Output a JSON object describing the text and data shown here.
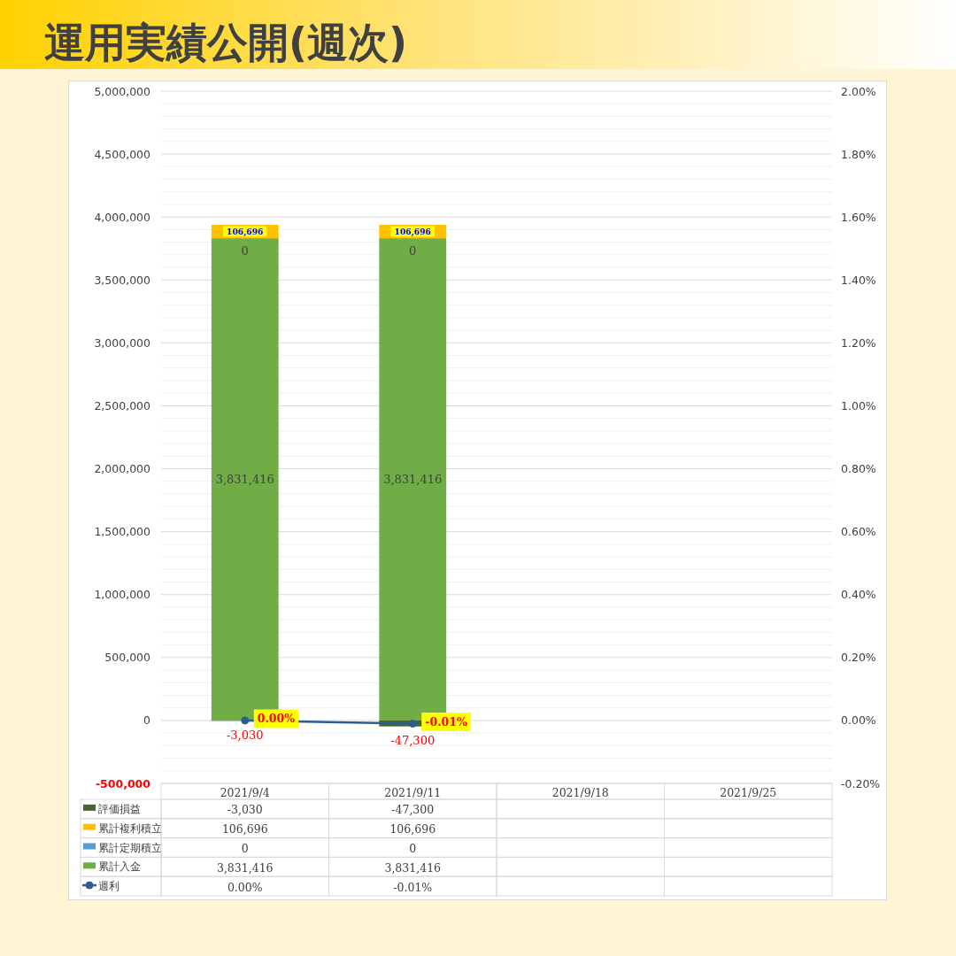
{
  "chart_data": {
    "type": "bar",
    "title": "運用実績公開(週次)",
    "categories": [
      "2021/9/4",
      "2021/9/11",
      "2021/9/18",
      "2021/9/25"
    ],
    "stacked": true,
    "series": [
      {
        "name": "累計入金",
        "color": "#70ad47",
        "values": [
          3831416,
          3831416,
          null,
          null
        ],
        "value_labels": [
          "3,831,416",
          "3,831,416",
          null,
          null
        ]
      },
      {
        "name": "累計定期積立",
        "color": "#5b9bd5",
        "values": [
          0,
          0,
          null,
          null
        ],
        "value_labels": [
          "0",
          "0",
          null,
          null
        ]
      },
      {
        "name": "累計複利積立",
        "color": "#ffc000",
        "values": [
          106696,
          106696,
          null,
          null
        ],
        "value_labels": [
          "106,696",
          "106,696",
          null,
          null
        ]
      },
      {
        "name": "評価損益",
        "color": "#46662c",
        "values": [
          -3030,
          -47300,
          null,
          null
        ],
        "value_labels": [
          "-3,030",
          "-47,300",
          null,
          null
        ]
      },
      {
        "name": "週利",
        "type": "line",
        "axis": "y2",
        "color": "#2b5f92",
        "values": [
          0.0,
          -0.01,
          null,
          null
        ],
        "value_labels": [
          "0.00%",
          "-0.01%",
          null,
          null
        ]
      }
    ],
    "ylim": [
      -500000,
      5000000
    ],
    "yticks": [
      {
        "value": -500000,
        "label": "-500,000"
      },
      {
        "value": -400000,
        "label": null
      },
      {
        "value": -300000,
        "label": null
      },
      {
        "value": -200000,
        "label": null
      },
      {
        "value": -100000,
        "label": null
      },
      0,
      {
        "value": 100000,
        "label": null
      },
      {
        "value": 200000,
        "label": null
      },
      {
        "value": 300000,
        "label": null
      },
      {
        "value": 400000,
        "label": null
      },
      {
        "value": 500000,
        "label": "500,000"
      },
      {
        "value": 600000,
        "label": null
      },
      {
        "value": 700000,
        "label": null
      },
      {
        "value": 800000,
        "label": null
      },
      {
        "value": 900000,
        "label": null
      },
      {
        "value": 1000000,
        "label": "1,000,000"
      },
      {
        "value": 1100000,
        "label": null
      },
      {
        "value": 1200000,
        "label": null
      },
      {
        "value": 1300000,
        "label": null
      },
      {
        "value": 1400000,
        "label": null
      },
      {
        "value": 1500000,
        "label": "1,500,000"
      },
      {
        "value": 1600000,
        "label": null
      },
      {
        "value": 1700000,
        "label": null
      },
      {
        "value": 1800000,
        "label": null
      },
      {
        "value": 1900000,
        "label": null
      },
      {
        "value": 2000000,
        "label": "2,000,000"
      },
      {
        "value": 2100000,
        "label": null
      },
      {
        "value": 2200000,
        "label": null
      },
      {
        "value": 2300000,
        "label": null
      },
      {
        "value": 2400000,
        "label": null
      },
      {
        "value": 2500000,
        "label": "2,500,000"
      },
      {
        "value": 2600000,
        "label": null
      },
      {
        "value": 2700000,
        "label": null
      },
      {
        "value": 2800000,
        "label": null
      },
      {
        "value": 2900000,
        "label": null
      },
      {
        "value": 3000000,
        "label": "3,000,000"
      },
      {
        "value": 3100000,
        "label": null
      },
      {
        "value": 3200000,
        "label": null
      },
      {
        "value": 3300000,
        "label": null
      },
      {
        "value": 3400000,
        "label": null
      },
      {
        "value": 3500000,
        "label": "3,500,000"
      },
      {
        "value": 3600000,
        "label": null
      },
      {
        "value": 3700000,
        "label": null
      },
      {
        "value": 3800000,
        "label": null
      },
      {
        "value": 3900000,
        "label": null
      },
      {
        "value": 4000000,
        "label": "4,000,000"
      },
      {
        "value": 4100000,
        "label": null
      },
      {
        "value": 4200000,
        "label": null
      },
      {
        "value": 4300000,
        "label": null
      },
      {
        "value": 4400000,
        "label": null
      },
      {
        "value": 4500000,
        "label": "4,500,000"
      },
      {
        "value": 4600000,
        "label": null
      },
      {
        "value": 4700000,
        "label": null
      },
      {
        "value": 4800000,
        "label": null
      },
      {
        "value": 4900000,
        "label": null
      },
      {
        "value": 5000000,
        "label": "5,000,000"
      }
    ],
    "y2lim": [
      -0.2,
      2.0
    ],
    "y2ticks": [
      {
        "value": -0.2,
        "label": "-0.20%"
      },
      {
        "value": 0,
        "label": "0.00%"
      },
      {
        "value": 0.2,
        "label": "0.20%"
      },
      {
        "value": 0.4,
        "label": "0.40%"
      },
      {
        "value": 0.6,
        "label": "0.60%"
      },
      {
        "value": 0.8,
        "label": "0.80%"
      },
      {
        "value": 1.0,
        "label": "1.00%"
      },
      {
        "value": 1.2,
        "label": "1.20%"
      },
      {
        "value": 1.4,
        "label": "1.40%"
      },
      {
        "value": 1.6,
        "label": "1.60%"
      },
      {
        "value": 1.8,
        "label": "1.80%"
      },
      {
        "value": 2.0,
        "label": "2.00%"
      }
    ],
    "grid": "y",
    "legend": "bottom left",
    "marker": "circle"
  }
}
